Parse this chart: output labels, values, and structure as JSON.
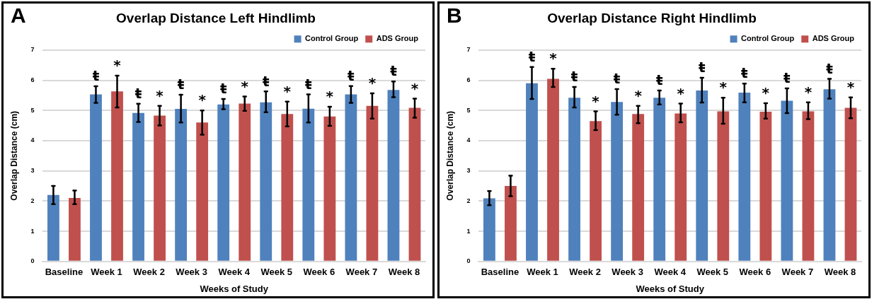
{
  "chart_data": [
    {
      "type": "bar",
      "title": "Overlap Distance Left Hindlimb",
      "xlabel": "Weeks of Study",
      "ylabel": "Overlap Distance (cm)",
      "categories": [
        "Baseline",
        "Week 1",
        "Week 2",
        "Week 3",
        "Week 4",
        "Week 5",
        "Week 6",
        "Week 7",
        "Week 8"
      ],
      "series": [
        {
          "name": "Control Group",
          "color": "#4f81bd",
          "values": [
            2.2,
            5.53,
            4.92,
            5.05,
            5.2,
            5.27,
            5.06,
            5.53,
            5.68
          ],
          "errors": [
            [
              1.9,
              2.5
            ],
            [
              5.25,
              5.8
            ],
            [
              4.62,
              5.22
            ],
            [
              4.6,
              5.52
            ],
            [
              5.04,
              5.38
            ],
            [
              4.94,
              5.63
            ],
            [
              4.6,
              5.53
            ],
            [
              5.25,
              5.81
            ],
            [
              5.44,
              5.96
            ]
          ],
          "value_labels": [
            null,
            "ŧ",
            "ŧ",
            "ŧ",
            "ŧ",
            "ŧ",
            "ŧ",
            "ŧ",
            "ŧ"
          ]
        },
        {
          "name": "ADS Group",
          "color": "#c0504d",
          "values": [
            2.1,
            5.63,
            4.83,
            4.6,
            5.23,
            4.88,
            4.8,
            5.15,
            5.09
          ],
          "errors": [
            [
              1.9,
              2.35
            ],
            [
              5.1,
              6.15
            ],
            [
              4.5,
              5.15
            ],
            [
              4.2,
              5.0
            ],
            [
              4.99,
              5.46
            ],
            [
              4.47,
              5.29
            ],
            [
              4.49,
              5.12
            ],
            [
              4.73,
              5.57
            ],
            [
              4.76,
              5.39
            ]
          ],
          "value_labels": [
            null,
            "*",
            "*",
            "*",
            "*",
            "*",
            "*",
            "*",
            "*"
          ]
        }
      ],
      "ylim": [
        0,
        7
      ],
      "yticks": [
        0,
        1,
        2,
        3,
        4,
        5,
        6,
        7
      ],
      "grid": "y",
      "legend": "top right",
      "annotations": [
        "A"
      ]
    },
    {
      "type": "bar",
      "title": "Overlap Distance Right Hindlimb",
      "xlabel": "Weeks of Study",
      "ylabel": "Overlap Distance (cm)",
      "categories": [
        "Baseline",
        "Week 1",
        "Week 2",
        "Week 3",
        "Week 4",
        "Week 5",
        "Week 6",
        "Week 7",
        "Week 8"
      ],
      "series": [
        {
          "name": "Control Group",
          "color": "#4f81bd",
          "values": [
            2.09,
            5.9,
            5.42,
            5.28,
            5.42,
            5.66,
            5.59,
            5.32,
            5.7
          ],
          "errors": [
            [
              1.86,
              2.33
            ],
            [
              5.38,
              6.44
            ],
            [
              5.1,
              5.78
            ],
            [
              4.86,
              5.71
            ],
            [
              5.2,
              5.66
            ],
            [
              5.26,
              6.08
            ],
            [
              5.27,
              5.89
            ],
            [
              4.91,
              5.73
            ],
            [
              5.39,
              6.05
            ]
          ],
          "value_labels": [
            null,
            "ŧ",
            "ŧ",
            "ŧ",
            "ŧ",
            "ŧ",
            "ŧ",
            "ŧ",
            "ŧ"
          ]
        },
        {
          "name": "ADS Group",
          "color": "#c0504d",
          "values": [
            2.5,
            6.05,
            4.65,
            4.88,
            4.9,
            4.97,
            4.96,
            4.97,
            5.09
          ],
          "errors": [
            [
              2.16,
              2.84
            ],
            [
              5.78,
              6.38
            ],
            [
              4.35,
              4.97
            ],
            [
              4.58,
              5.15
            ],
            [
              4.61,
              5.23
            ],
            [
              4.56,
              5.42
            ],
            [
              4.73,
              5.24
            ],
            [
              4.71,
              5.27
            ],
            [
              4.74,
              5.43
            ]
          ],
          "value_labels": [
            null,
            "*",
            "*",
            "*",
            "*",
            "*",
            "*",
            "*",
            "*"
          ]
        }
      ],
      "ylim": [
        0,
        7
      ],
      "yticks": [
        0,
        1,
        2,
        3,
        4,
        5,
        6,
        7
      ],
      "grid": "y",
      "legend": "top right",
      "annotations": [
        "B"
      ]
    }
  ]
}
